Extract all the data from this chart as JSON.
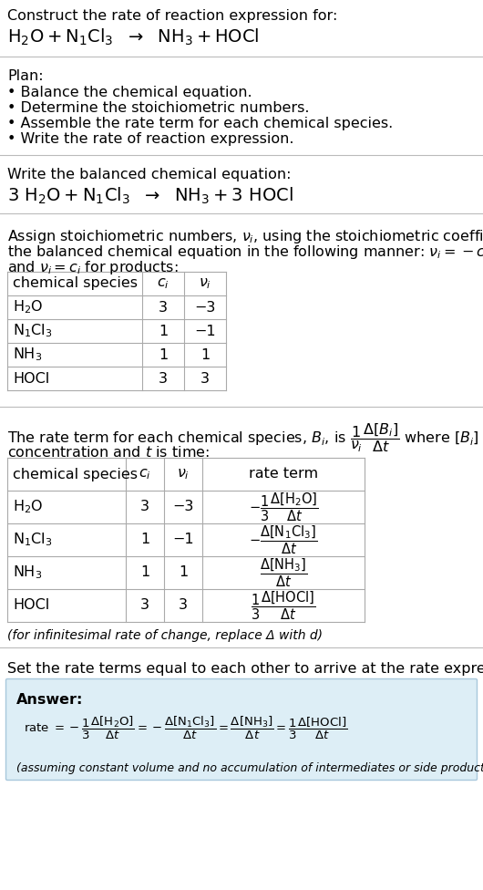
{
  "bg_color": "#ffffff",
  "text_color": "#000000",
  "title_line1": "Construct the rate of reaction expression for:",
  "plan_header": "Plan:",
  "plan_items": [
    "• Balance the chemical equation.",
    "• Determine the stoichiometric numbers.",
    "• Assemble the rate term for each chemical species.",
    "• Write the rate of reaction expression."
  ],
  "balanced_header": "Write the balanced chemical equation:",
  "table1_headers": [
    "chemical species",
    "$c_i$",
    "$\\nu_i$"
  ],
  "table1_rows": [
    [
      "$\\mathrm{H_2O}$",
      "3",
      "−3"
    ],
    [
      "$\\mathrm{N_1Cl_3}$",
      "1",
      "−1"
    ],
    [
      "$\\mathrm{NH_3}$",
      "1",
      "1"
    ],
    [
      "HOCl",
      "3",
      "3"
    ]
  ],
  "table2_headers": [
    "chemical species",
    "$c_i$",
    "$\\nu_i$",
    "rate term"
  ],
  "table2_rows": [
    [
      "$\\mathrm{H_2O}$",
      "3",
      "−3",
      "$-\\frac{1}{3}\\frac{\\Delta[\\mathrm{H_2O}]}{\\Delta t}$"
    ],
    [
      "$\\mathrm{N_1Cl_3}$",
      "1",
      "−1",
      "$-\\frac{\\Delta[\\mathrm{N_1Cl_3}]}{\\Delta t}$"
    ],
    [
      "$\\mathrm{NH_3}$",
      "1",
      "1",
      "$\\frac{\\Delta[\\mathrm{NH_3}]}{\\Delta t}$"
    ],
    [
      "HOCl",
      "3",
      "3",
      "$\\frac{1}{3}\\frac{\\Delta[\\mathrm{HOCl}]}{\\Delta t}$"
    ]
  ],
  "infinitesimal_note": "(for infinitesimal rate of change, replace Δ with d)",
  "set_equal_header": "Set the rate terms equal to each other to arrive at the rate expression:",
  "answer_label": "Answer:",
  "answer_bg": "#ddeef6",
  "answer_border": "#a8c8dc",
  "assuming_note": "(assuming constant volume and no accumulation of intermediates or side products)"
}
